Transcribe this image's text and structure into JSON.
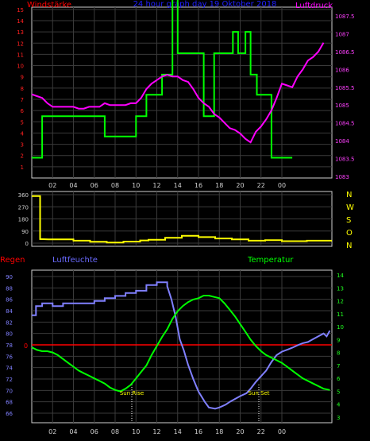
{
  "header": {
    "left": "Windstärke",
    "center": "24 hour graph day  19 Oktober 2018",
    "right": "Luftdruck"
  },
  "colors": {
    "wind": "#ff0000",
    "pressure": "#ff00ff",
    "wind_speed_line": "#00ff00",
    "title": "#2020ff",
    "direction": "#ffff00",
    "rain": "#ff0000",
    "humidity": "#8080ff",
    "temperature": "#00ff00",
    "grid": "#404040",
    "frame": "#d0d0d0"
  },
  "x_ticks": [
    "02",
    "04",
    "06",
    "08",
    "10",
    "12",
    "14",
    "16",
    "18",
    "20",
    "22",
    "00"
  ],
  "panel_top": {
    "left_axis": [
      "1",
      "2",
      "3",
      "4",
      "5",
      "6",
      "7",
      "8",
      "9",
      "10",
      "11",
      "12",
      "13",
      "14",
      "15"
    ],
    "right_axis": [
      "1083",
      "1083.5",
      "1084",
      "1084.5",
      "1085",
      "1085.5",
      "1086",
      "1086.5",
      "1087",
      "1087.5"
    ],
    "wind_steps": [
      [
        0,
        1.8
      ],
      [
        1,
        1.8
      ],
      [
        1,
        5.5
      ],
      [
        7,
        5.5
      ],
      [
        7,
        3.7
      ],
      [
        10,
        3.7
      ],
      [
        10,
        5.5
      ],
      [
        11,
        5.5
      ],
      [
        11,
        7.4
      ],
      [
        12.5,
        7.4
      ],
      [
        12.5,
        9.2
      ],
      [
        13.5,
        9.2
      ],
      [
        13.5,
        16
      ],
      [
        14,
        16
      ],
      [
        14,
        11.1
      ],
      [
        16.5,
        11.1
      ],
      [
        16.5,
        5.5
      ],
      [
        17.5,
        5.5
      ],
      [
        17.5,
        11.1
      ],
      [
        19.3,
        11.1
      ],
      [
        19.3,
        13
      ],
      [
        19.8,
        13
      ],
      [
        19.8,
        11.1
      ],
      [
        20.5,
        11.1
      ],
      [
        20.5,
        13
      ],
      [
        21,
        13
      ],
      [
        21,
        9.2
      ],
      [
        21.6,
        9.2
      ],
      [
        21.6,
        7.4
      ],
      [
        23,
        7.4
      ],
      [
        23,
        1.8
      ],
      [
        25,
        1.8
      ]
    ],
    "pressure": [
      [
        0,
        1085.3
      ],
      [
        0.5,
        1085.25
      ],
      [
        1,
        1085.2
      ],
      [
        1.5,
        1085.05
      ],
      [
        2,
        1084.95
      ],
      [
        2.5,
        1084.95
      ],
      [
        3,
        1084.95
      ],
      [
        3.5,
        1084.95
      ],
      [
        4,
        1084.95
      ],
      [
        4.5,
        1084.9
      ],
      [
        5,
        1084.9
      ],
      [
        5.5,
        1084.95
      ],
      [
        6,
        1084.95
      ],
      [
        6.5,
        1084.95
      ],
      [
        7,
        1085.05
      ],
      [
        7.5,
        1085.0
      ],
      [
        8,
        1085.0
      ],
      [
        8.5,
        1085.0
      ],
      [
        9,
        1085.0
      ],
      [
        9.5,
        1085.05
      ],
      [
        10,
        1085.05
      ],
      [
        10.5,
        1085.2
      ],
      [
        11,
        1085.45
      ],
      [
        11.5,
        1085.6
      ],
      [
        12,
        1085.7
      ],
      [
        12.5,
        1085.8
      ],
      [
        13,
        1085.85
      ],
      [
        13.5,
        1085.8
      ],
      [
        14,
        1085.8
      ],
      [
        14.5,
        1085.7
      ],
      [
        15,
        1085.65
      ],
      [
        15.5,
        1085.45
      ],
      [
        16,
        1085.2
      ],
      [
        16.5,
        1085.05
      ],
      [
        17,
        1084.95
      ],
      [
        17.5,
        1084.75
      ],
      [
        18,
        1084.65
      ],
      [
        18.5,
        1084.5
      ],
      [
        19,
        1084.35
      ],
      [
        19.5,
        1084.3
      ],
      [
        20,
        1084.2
      ],
      [
        20.5,
        1084.05
      ],
      [
        21,
        1083.95
      ],
      [
        21.5,
        1084.25
      ],
      [
        22,
        1084.4
      ],
      [
        22.5,
        1084.6
      ],
      [
        23,
        1084.85
      ],
      [
        23.5,
        1085.2
      ],
      [
        24,
        1085.6
      ],
      [
        24.5,
        1085.55
      ],
      [
        25,
        1085.5
      ],
      [
        25.5,
        1085.8
      ],
      [
        26,
        1086.0
      ],
      [
        26.5,
        1086.25
      ],
      [
        27,
        1086.35
      ],
      [
        27.5,
        1086.5
      ],
      [
        28,
        1086.75
      ]
    ]
  },
  "panel_dir": {
    "left_axis": [
      "0",
      "90",
      "180",
      "270",
      "360"
    ],
    "right_axis": [
      "N",
      "W",
      "S",
      "O",
      "N"
    ],
    "direction": [
      [
        0,
        350
      ],
      [
        1,
        350
      ],
      [
        1,
        30
      ],
      [
        2,
        28
      ],
      [
        5,
        28
      ],
      [
        5,
        18
      ],
      [
        7,
        18
      ],
      [
        7,
        10
      ],
      [
        9,
        10
      ],
      [
        9,
        5
      ],
      [
        11,
        5
      ],
      [
        11,
        12
      ],
      [
        13,
        12
      ],
      [
        13,
        20
      ],
      [
        14,
        20
      ],
      [
        14,
        25
      ],
      [
        16,
        25
      ],
      [
        16,
        40
      ],
      [
        18,
        40
      ],
      [
        18,
        55
      ],
      [
        20,
        55
      ],
      [
        20,
        45
      ],
      [
        22,
        45
      ],
      [
        22,
        35
      ],
      [
        24,
        35
      ],
      [
        24,
        28
      ],
      [
        26,
        28
      ],
      [
        26,
        18
      ],
      [
        28,
        18
      ],
      [
        28,
        22
      ],
      [
        30,
        22
      ],
      [
        30,
        15
      ],
      [
        33,
        15
      ],
      [
        33,
        18
      ],
      [
        36,
        18
      ]
    ]
  },
  "panel_bottom": {
    "label_rain": "Regen",
    "label_humidity": "Luftfeuchte",
    "label_temperature": "Temperatur",
    "rain_value": "0",
    "left_axis": [
      "66",
      "68",
      "70",
      "72",
      "74",
      "76",
      "78",
      "80",
      "82",
      "84",
      "86",
      "88",
      "90"
    ],
    "right_axis": [
      "3",
      "4",
      "5",
      "6",
      "7",
      "8",
      "9",
      "10",
      "11",
      "12",
      "13",
      "14"
    ],
    "sunrise_label": "Sun Rise",
    "sunset_label": "Sun Set",
    "humidity": [
      [
        0,
        83.2
      ],
      [
        0.4,
        83.2
      ],
      [
        0.4,
        84.8
      ],
      [
        1.0,
        84.8
      ],
      [
        1.0,
        85.3
      ],
      [
        2.0,
        85.3
      ],
      [
        2.0,
        84.8
      ],
      [
        3.0,
        84.8
      ],
      [
        3.0,
        85.3
      ],
      [
        6.0,
        85.3
      ],
      [
        6.0,
        85.7
      ],
      [
        7.0,
        85.7
      ],
      [
        7.0,
        86.2
      ],
      [
        8.0,
        86.2
      ],
      [
        8.0,
        86.6
      ],
      [
        9.0,
        86.6
      ],
      [
        9.0,
        87.1
      ],
      [
        10.0,
        87.1
      ],
      [
        10.0,
        87.5
      ],
      [
        11.0,
        87.5
      ],
      [
        11.0,
        88.5
      ],
      [
        12.0,
        88.5
      ],
      [
        12.0,
        89.0
      ],
      [
        13.0,
        89.0
      ],
      [
        13.0,
        88.3
      ],
      [
        13.4,
        86.0
      ],
      [
        13.8,
        83.0
      ],
      [
        14.2,
        79.0
      ],
      [
        14.6,
        77.0
      ],
      [
        15.0,
        74.5
      ],
      [
        15.5,
        72.0
      ],
      [
        16.0,
        69.8
      ],
      [
        16.6,
        68.0
      ],
      [
        17.0,
        67.0
      ],
      [
        17.6,
        66.8
      ],
      [
        18.0,
        67.0
      ],
      [
        18.6,
        67.5
      ],
      [
        19.0,
        68.0
      ],
      [
        20.0,
        69.0
      ],
      [
        20.6,
        69.5
      ],
      [
        21.0,
        70.3
      ],
      [
        21.5,
        71.5
      ],
      [
        22.0,
        72.5
      ],
      [
        22.5,
        73.5
      ],
      [
        23.0,
        75.0
      ],
      [
        23.5,
        76.2
      ],
      [
        24.0,
        76.8
      ],
      [
        24.6,
        77.2
      ],
      [
        25.0,
        77.5
      ],
      [
        25.6,
        78.0
      ],
      [
        26.0,
        78.3
      ],
      [
        26.5,
        78.5
      ],
      [
        27.0,
        79.0
      ],
      [
        27.5,
        79.5
      ],
      [
        28.0,
        80.0
      ],
      [
        28.3,
        79.5
      ],
      [
        28.6,
        80.5
      ]
    ],
    "temperature": [
      [
        0,
        8.4
      ],
      [
        0.5,
        8.2
      ],
      [
        1.0,
        8.1
      ],
      [
        1.5,
        8.1
      ],
      [
        2.0,
        8.0
      ],
      [
        2.5,
        7.8
      ],
      [
        3.0,
        7.5
      ],
      [
        3.5,
        7.2
      ],
      [
        4.0,
        6.9
      ],
      [
        4.5,
        6.6
      ],
      [
        5.0,
        6.4
      ],
      [
        5.5,
        6.2
      ],
      [
        6.0,
        6.0
      ],
      [
        6.5,
        5.8
      ],
      [
        7.0,
        5.6
      ],
      [
        7.5,
        5.3
      ],
      [
        8.0,
        5.1
      ],
      [
        8.5,
        5.0
      ],
      [
        9.0,
        5.2
      ],
      [
        9.5,
        5.5
      ],
      [
        10.0,
        6.0
      ],
      [
        10.5,
        6.5
      ],
      [
        11.0,
        7.0
      ],
      [
        11.5,
        7.8
      ],
      [
        12.0,
        8.5
      ],
      [
        12.5,
        9.2
      ],
      [
        13.0,
        9.8
      ],
      [
        13.5,
        10.6
      ],
      [
        14.0,
        11.2
      ],
      [
        14.5,
        11.6
      ],
      [
        15.0,
        11.9
      ],
      [
        15.5,
        12.1
      ],
      [
        16.0,
        12.2
      ],
      [
        16.5,
        12.4
      ],
      [
        17.0,
        12.4
      ],
      [
        17.5,
        12.3
      ],
      [
        18.0,
        12.2
      ],
      [
        18.5,
        11.8
      ],
      [
        19.0,
        11.3
      ],
      [
        19.5,
        10.8
      ],
      [
        20.0,
        10.2
      ],
      [
        20.5,
        9.6
      ],
      [
        21.0,
        9.0
      ],
      [
        21.5,
        8.5
      ],
      [
        22.0,
        8.1
      ],
      [
        22.5,
        7.8
      ],
      [
        23.0,
        7.6
      ],
      [
        23.5,
        7.4
      ],
      [
        24.0,
        7.2
      ],
      [
        24.5,
        6.9
      ],
      [
        25.0,
        6.6
      ],
      [
        25.5,
        6.3
      ],
      [
        26.0,
        6.0
      ],
      [
        26.5,
        5.8
      ],
      [
        27.0,
        5.6
      ],
      [
        27.5,
        5.4
      ],
      [
        28.0,
        5.2
      ],
      [
        28.6,
        5.1
      ]
    ]
  }
}
